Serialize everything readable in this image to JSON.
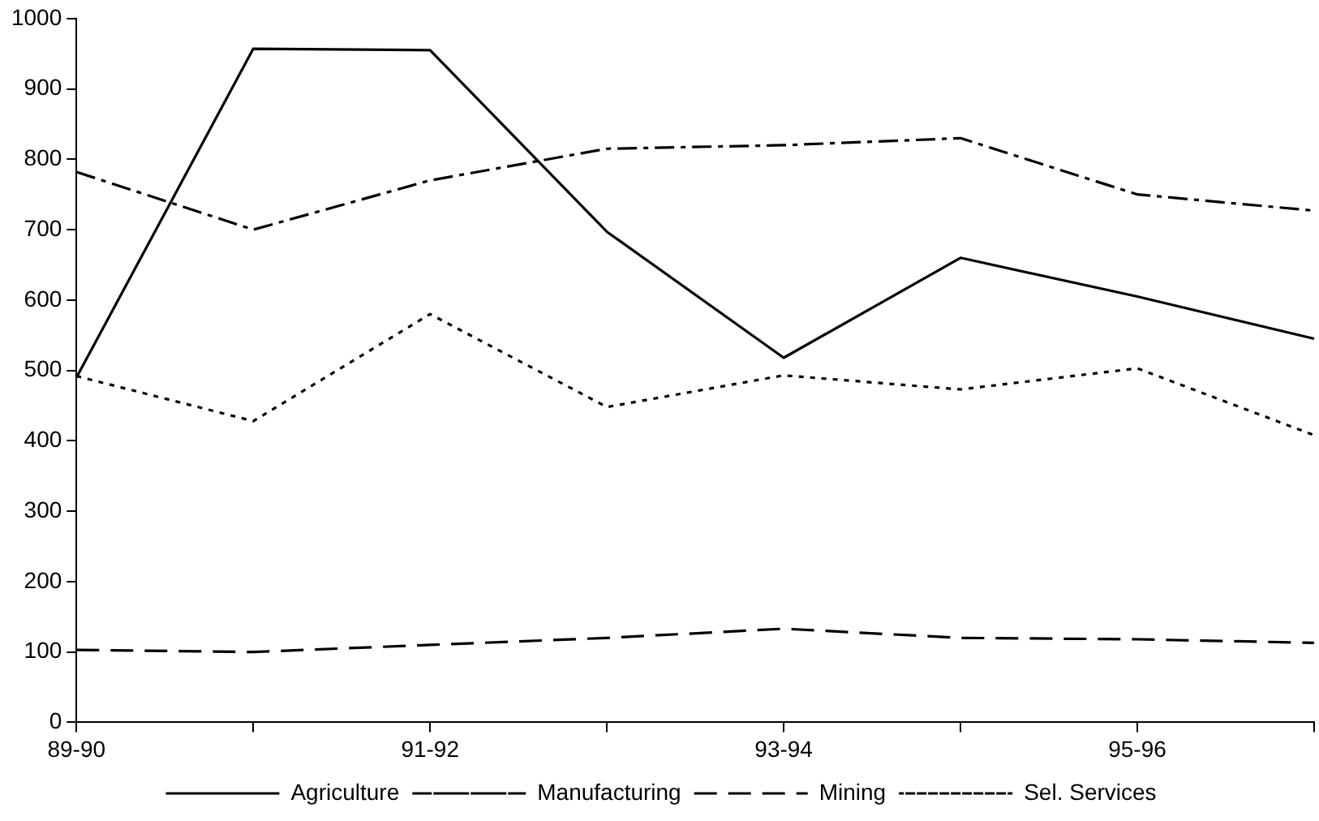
{
  "chart_data": {
    "type": "line",
    "categories": [
      "89-90",
      null,
      "91-92",
      null,
      "93-94",
      null,
      "95-96",
      null
    ],
    "series": [
      {
        "name": "Agriculture",
        "color": "#000000",
        "line_style": "solid",
        "values": [
          490,
          957,
          955,
          697,
          518,
          660,
          605,
          545
        ]
      },
      {
        "name": "Manufacturing",
        "color": "#000000",
        "line_style": "dashdot",
        "values": [
          782,
          700,
          770,
          815,
          820,
          830,
          750,
          727
        ]
      },
      {
        "name": "Mining",
        "color": "#000000",
        "line_style": "dashed",
        "values": [
          103,
          100,
          110,
          120,
          133,
          120,
          118,
          113
        ]
      },
      {
        "name": "Sel. Services",
        "color": "#000000",
        "line_style": "dotted",
        "values": [
          492,
          428,
          580,
          448,
          493,
          473,
          503,
          408
        ]
      }
    ],
    "ylim": [
      0,
      1000
    ],
    "yticks": [
      0,
      100,
      200,
      300,
      400,
      500,
      600,
      700,
      800,
      900,
      1000
    ],
    "grid": false,
    "legend": "bottom",
    "marker": "none"
  }
}
